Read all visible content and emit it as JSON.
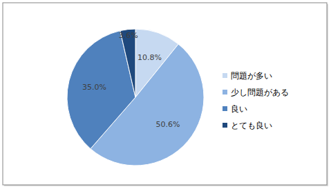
{
  "chart_data": {
    "type": "pie",
    "categories": [
      "問題が多い",
      "少し問題がある",
      "良い",
      "とても良い"
    ],
    "values": [
      10.8,
      50.6,
      35.0,
      3.6
    ],
    "value_labels": [
      "10.8%",
      "50.6%",
      "35.0%",
      "3.6%"
    ],
    "colors": [
      "#c6d9f1",
      "#8db3e2",
      "#4f81bd",
      "#1f497d"
    ],
    "data_labels": true,
    "legend": "right"
  }
}
